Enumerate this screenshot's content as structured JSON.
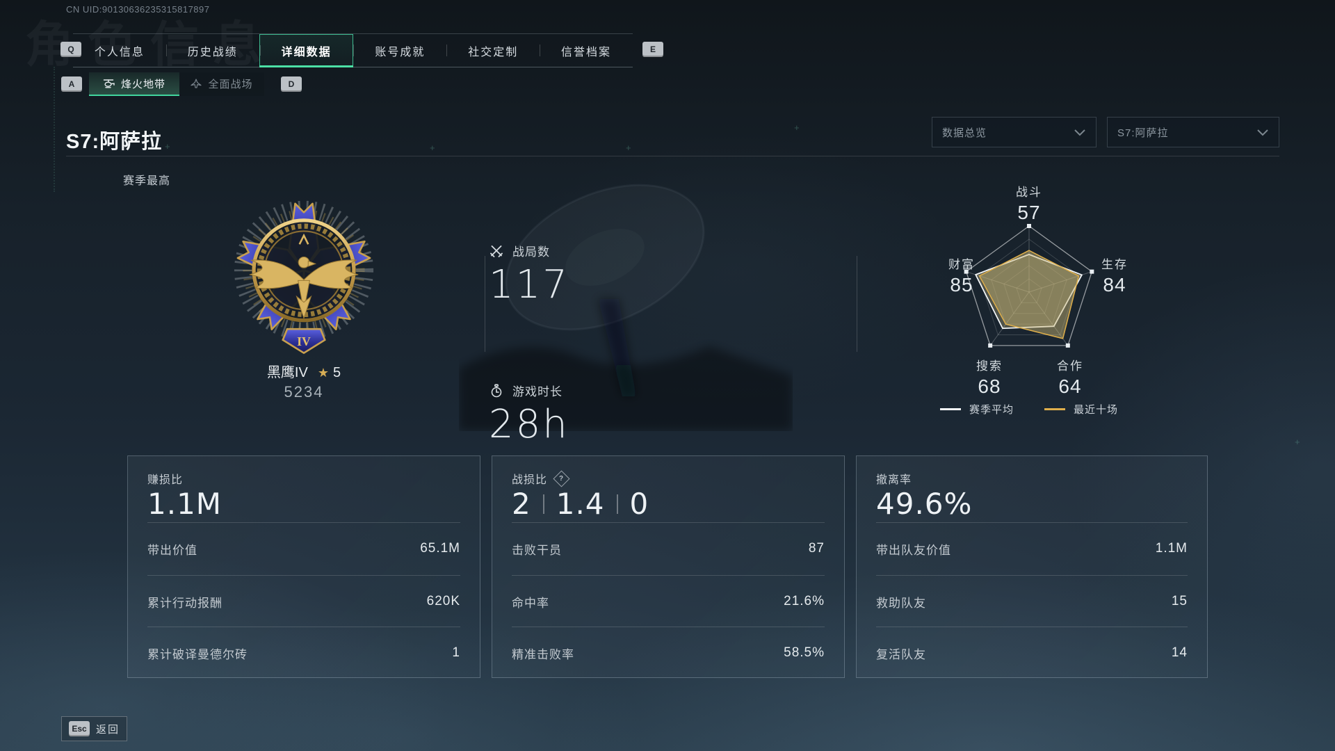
{
  "uid": "CN UID:90130636235315817897",
  "watermark": "角色信息",
  "hotkeys": {
    "tabs_left": "Q",
    "tabs_right": "E",
    "subtabs_left": "A",
    "subtabs_right": "D",
    "back": "Esc"
  },
  "icons": {
    "star": "★"
  },
  "tabs": {
    "items": [
      {
        "label": "个人信息"
      },
      {
        "label": "历史战绩"
      },
      {
        "label": "详细数据"
      },
      {
        "label": "账号成就"
      },
      {
        "label": "社交定制"
      },
      {
        "label": "信誉档案"
      }
    ],
    "active": "详细数据"
  },
  "subtabs": {
    "items": [
      {
        "label": "烽火地带",
        "icon": "helicopter-icon"
      },
      {
        "label": "全面战场",
        "icon": "jet-icon"
      }
    ],
    "active": "烽火地带"
  },
  "page": {
    "title": "S7:阿萨拉",
    "season_best_label": "赛季最高"
  },
  "filters": {
    "scope": "数据总览",
    "season": "S7:阿萨拉"
  },
  "rank": {
    "name": "黑鹰IV",
    "star_count": "5",
    "score": "5234",
    "numeral": "IV"
  },
  "summary": {
    "battles": {
      "label": "战局数",
      "value": "117"
    },
    "playtime": {
      "label": "游戏时长",
      "value": "28h"
    }
  },
  "chart_data": {
    "type": "radar",
    "max": 100,
    "grid_levels": 5,
    "axes": [
      {
        "label": "战斗",
        "value": 57
      },
      {
        "label": "生存",
        "value": 84
      },
      {
        "label": "合作",
        "value": 64
      },
      {
        "label": "搜索",
        "value": 68
      },
      {
        "label": "财富",
        "value": 85
      }
    ],
    "series": [
      {
        "name": "赛季平均",
        "color": "#f2f5f7",
        "fill": "rgba(205,192,140,0.30)",
        "values": [
          57,
          84,
          64,
          68,
          85
        ]
      },
      {
        "name": "最近十场",
        "color": "#dfaf4b",
        "fill": "rgba(205,185,115,0.45)",
        "values": [
          63,
          79,
          87,
          60,
          79
        ]
      }
    ],
    "legend_position": "bottom"
  },
  "cards": [
    {
      "title": "赚损比",
      "value": "1.1M",
      "rows": [
        {
          "label": "带出价值",
          "value": "65.1M"
        },
        {
          "label": "累计行动报酬",
          "value": "620K"
        },
        {
          "label": "累计破译曼德尔砖",
          "value": "1"
        }
      ]
    },
    {
      "title": "战损比",
      "value_parts": {
        "kills": "2",
        "kd": "1.4",
        "deaths": "0"
      },
      "rows": [
        {
          "label": "击败干员",
          "value": "87"
        },
        {
          "label": "命中率",
          "value": "21.6%"
        },
        {
          "label": "精准击败率",
          "value": "58.5%"
        }
      ]
    },
    {
      "title": "撤离率",
      "value": "49.6%",
      "rows": [
        {
          "label": "带出队友价值",
          "value": "1.1M"
        },
        {
          "label": "救助队友",
          "value": "15"
        },
        {
          "label": "复活队友",
          "value": "14"
        }
      ]
    }
  ],
  "footer": {
    "back_label": "返回"
  }
}
